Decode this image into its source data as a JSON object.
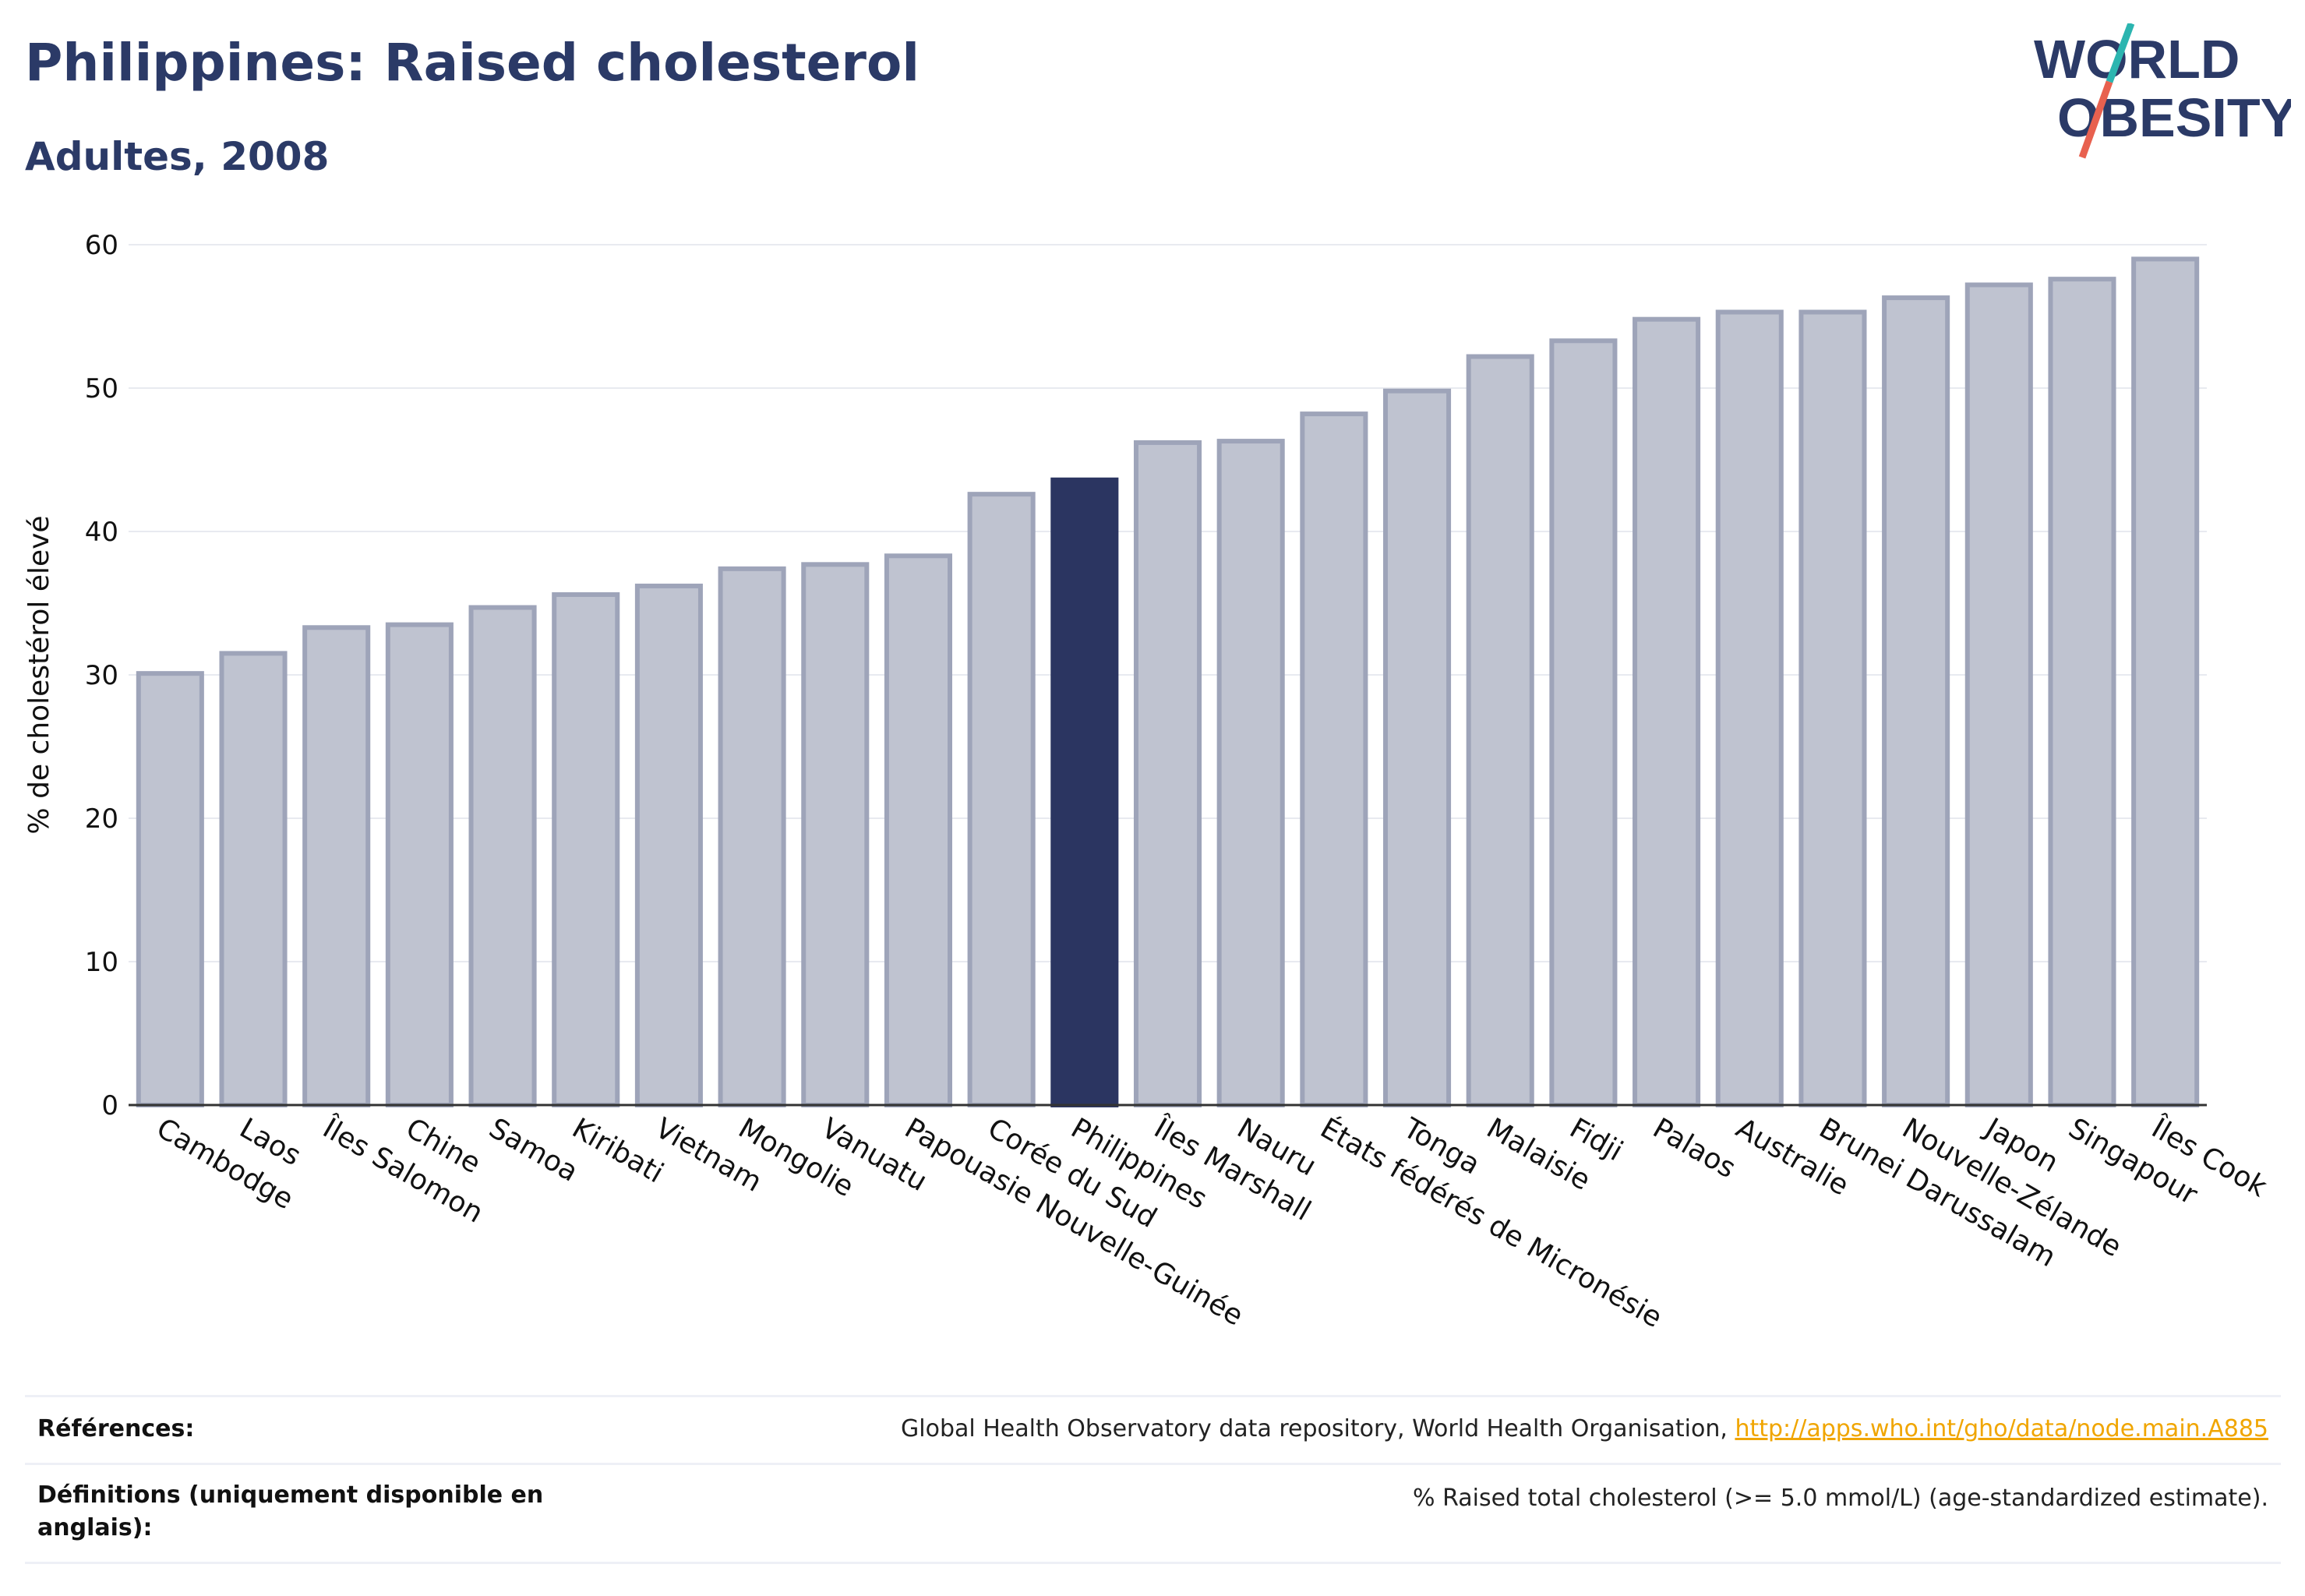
{
  "header": {
    "title": "Philippines: Raised cholesterol",
    "subtitle": "Adultes, 2008"
  },
  "logo": {
    "line1": "WORLD",
    "line2": "OBESITY",
    "icon": "world-obesity-logo"
  },
  "colors": {
    "bar": "#bfc3d0",
    "bar_stroke": "#9ea4b9",
    "highlight": "#2b3561",
    "text": "#111111",
    "title": "#2b3a67",
    "link": "#f0a500",
    "logo_slash_red": "#e8614f",
    "logo_slash_teal": "#2cb5b0"
  },
  "chart_data": {
    "type": "bar",
    "title": "Philippines: Raised cholesterol",
    "subtitle": "Adultes, 2008",
    "xlabel": "",
    "ylabel": "% de cholestérol élevé",
    "ylim": [
      0,
      60
    ],
    "yticks": [
      0,
      10,
      20,
      30,
      40,
      50,
      60
    ],
    "grid": true,
    "highlight": "Philippines",
    "categories": [
      "Cambodge",
      "Laos",
      "Îles Salomon",
      "Chine",
      "Samoa",
      "Kiribati",
      "Vietnam",
      "Mongolie",
      "Vanuatu",
      "Papouasie Nouvelle-Guinée",
      "Corée du Sud",
      "Philippines",
      "Îles Marshall",
      "Nauru",
      "États fédérés de Micronésie",
      "Tonga",
      "Malaisie",
      "Fidji",
      "Palaos",
      "Australie",
      "Brunei Darussalam",
      "Nouvelle-Zélande",
      "Japon",
      "Singapour",
      "Îles Cook"
    ],
    "values": [
      30.1,
      31.5,
      33.3,
      33.5,
      34.7,
      35.6,
      36.2,
      37.4,
      37.7,
      38.3,
      42.6,
      43.6,
      46.2,
      46.3,
      48.2,
      49.8,
      52.2,
      53.3,
      54.8,
      55.3,
      55.3,
      56.3,
      57.2,
      57.6,
      59.0
    ]
  },
  "references": {
    "label": "Références:",
    "text": "Global Health Observatory data repository, World Health Organisation, ",
    "link": "http://apps.who.int/gho/data/node.main.A885"
  },
  "definitions": {
    "label": "Définitions (uniquement disponible en anglais):",
    "text": "% Raised total cholesterol (>= 5.0 mmol/L) (age-standardized estimate)."
  }
}
